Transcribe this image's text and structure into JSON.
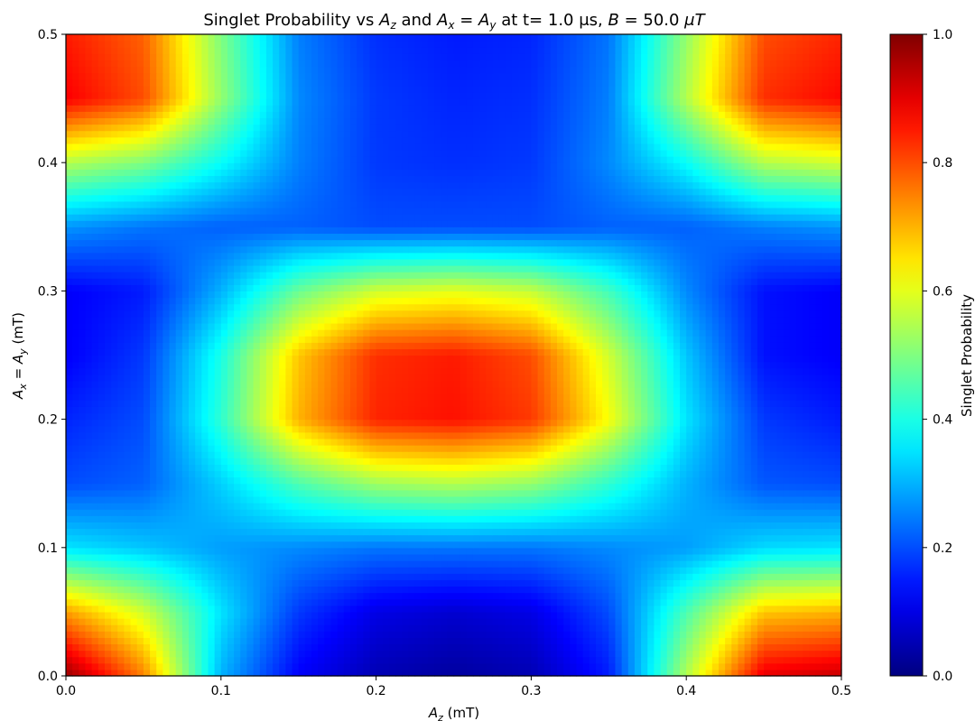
{
  "chart_data": {
    "type": "heatmap",
    "title": {
      "prefix": "Singlet Probability vs ",
      "sym_A": "A",
      "sub_z": "z",
      "mid1": " and ",
      "sub_x": "x",
      "eq": " = ",
      "sub_y": "y",
      "mid2": " at t= 1.0 μs, ",
      "sym_B": "B",
      "mid3": " = 50.0 ",
      "unit": "μT"
    },
    "xlabel": {
      "sym": "A",
      "sub": "z",
      "rest": " (mT)"
    },
    "ylabel": {
      "sym1": "A",
      "sub1": "x",
      "eq": " = ",
      "sym2": "A",
      "sub2": "y",
      "rest": " (mT)"
    },
    "xlim": [
      0.0,
      0.5
    ],
    "ylim": [
      0.0,
      0.5
    ],
    "x_ticks": [
      "0.0",
      "0.1",
      "0.2",
      "0.3",
      "0.4",
      "0.5"
    ],
    "y_ticks": [
      "0.0",
      "0.1",
      "0.2",
      "0.3",
      "0.4",
      "0.5"
    ],
    "x_tick_values": [
      0.0,
      0.1,
      0.2,
      0.3,
      0.4,
      0.5
    ],
    "y_tick_values": [
      0.0,
      0.1,
      0.2,
      0.3,
      0.4,
      0.5
    ],
    "colormap": "jet",
    "colorbar": {
      "label": "Singlet Probability",
      "range": [
        0.0,
        1.0
      ],
      "ticks": [
        "0.0",
        "0.2",
        "0.4",
        "0.6",
        "0.8",
        "1.0"
      ],
      "tick_values": [
        0.0,
        0.2,
        0.4,
        0.6,
        0.8,
        1.0
      ]
    },
    "grid": false,
    "grid_x": [
      0.0,
      0.05,
      0.1,
      0.15,
      0.2,
      0.25,
      0.3,
      0.35,
      0.4,
      0.45,
      0.5
    ],
    "grid_y": [
      0.0,
      0.05,
      0.1,
      0.15,
      0.2,
      0.25,
      0.3,
      0.35,
      0.4,
      0.45,
      0.5
    ],
    "z": [
      [
        0.98,
        0.75,
        0.3,
        0.12,
        0.05,
        0.03,
        0.05,
        0.15,
        0.55,
        0.9,
        0.93
      ],
      [
        0.72,
        0.58,
        0.35,
        0.18,
        0.1,
        0.08,
        0.1,
        0.2,
        0.45,
        0.68,
        0.7
      ],
      [
        0.35,
        0.32,
        0.28,
        0.26,
        0.24,
        0.24,
        0.24,
        0.26,
        0.28,
        0.34,
        0.35
      ],
      [
        0.2,
        0.22,
        0.33,
        0.45,
        0.53,
        0.55,
        0.52,
        0.42,
        0.3,
        0.21,
        0.2
      ],
      [
        0.16,
        0.2,
        0.42,
        0.7,
        0.84,
        0.86,
        0.82,
        0.62,
        0.35,
        0.18,
        0.15
      ],
      [
        0.12,
        0.18,
        0.4,
        0.68,
        0.83,
        0.85,
        0.8,
        0.58,
        0.32,
        0.14,
        0.12
      ],
      [
        0.12,
        0.15,
        0.3,
        0.48,
        0.58,
        0.6,
        0.57,
        0.44,
        0.26,
        0.14,
        0.12
      ],
      [
        0.27,
        0.24,
        0.22,
        0.22,
        0.2,
        0.2,
        0.2,
        0.22,
        0.22,
        0.25,
        0.27
      ],
      [
        0.55,
        0.5,
        0.38,
        0.25,
        0.18,
        0.17,
        0.18,
        0.26,
        0.38,
        0.55,
        0.58
      ],
      [
        0.88,
        0.8,
        0.52,
        0.26,
        0.18,
        0.16,
        0.17,
        0.25,
        0.55,
        0.83,
        0.87
      ],
      [
        0.85,
        0.78,
        0.5,
        0.25,
        0.17,
        0.15,
        0.16,
        0.24,
        0.52,
        0.8,
        0.84
      ]
    ]
  }
}
